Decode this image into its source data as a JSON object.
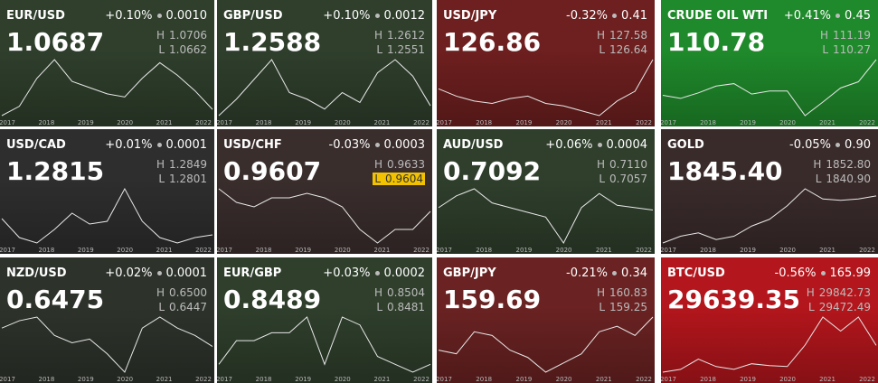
{
  "high_label": "H",
  "low_label": "L",
  "years": [
    "2017",
    "2018",
    "2019",
    "2020",
    "2021",
    "2022"
  ],
  "tiles": [
    {
      "symbol": "EUR/USD",
      "change_pct": "+0.10%",
      "change": "0.0010",
      "price": "1.0687",
      "high": "1.0706",
      "low": "1.0662",
      "color": "#2f3f2c",
      "history": [
        1.05,
        1.08,
        1.17,
        1.23,
        1.16,
        1.14,
        1.12,
        1.11,
        1.17,
        1.22,
        1.18,
        1.13,
        1.07
      ]
    },
    {
      "symbol": "GBP/USD",
      "change_pct": "+0.10%",
      "change": "0.0012",
      "price": "1.2588",
      "high": "1.2612",
      "low": "1.2551",
      "color": "#2f3f2c",
      "history": [
        1.23,
        1.28,
        1.34,
        1.4,
        1.3,
        1.28,
        1.25,
        1.3,
        1.27,
        1.36,
        1.4,
        1.35,
        1.26
      ]
    },
    {
      "symbol": "USD/JPY",
      "change_pct": "-0.32%",
      "change": "0.41",
      "price": "126.86",
      "high": "127.58",
      "low": "126.64",
      "color": "#6e1f1f",
      "history": [
        115,
        112,
        110,
        109,
        111,
        112,
        109,
        108,
        106,
        104,
        110,
        114,
        127
      ]
    },
    {
      "symbol": "CRUDE OIL WTI",
      "change_pct": "+0.41%",
      "change": "0.45",
      "price": "110.78",
      "high": "111.19",
      "low": "110.27",
      "color": "#1f8a2b",
      "history": [
        53,
        48,
        57,
        68,
        72,
        55,
        60,
        60,
        20,
        42,
        65,
        75,
        111
      ]
    },
    {
      "symbol": "USD/CAD",
      "change_pct": "+0.01%",
      "change": "0.0001",
      "price": "1.2815",
      "high": "1.2849",
      "low": "1.2801",
      "color": "#2e2e2e",
      "history": [
        1.34,
        1.27,
        1.25,
        1.3,
        1.36,
        1.32,
        1.33,
        1.45,
        1.33,
        1.27,
        1.25,
        1.27,
        1.28
      ]
    },
    {
      "symbol": "USD/CHF",
      "change_pct": "-0.03%",
      "change": "0.0003",
      "price": "0.9607",
      "high": "0.9633",
      "low": "0.9604",
      "low_highlight": true,
      "color": "#3a2e2d",
      "history": [
        1.01,
        0.98,
        0.97,
        0.99,
        0.99,
        1.0,
        0.99,
        0.97,
        0.92,
        0.89,
        0.92,
        0.92,
        0.96
      ]
    },
    {
      "symbol": "AUD/USD",
      "change_pct": "+0.06%",
      "change": "0.0004",
      "price": "0.7092",
      "high": "0.7110",
      "low": "0.7057",
      "color": "#2f3f2c",
      "history": [
        0.72,
        0.77,
        0.8,
        0.74,
        0.72,
        0.7,
        0.68,
        0.57,
        0.72,
        0.78,
        0.73,
        0.72,
        0.71
      ]
    },
    {
      "symbol": "GOLD",
      "change_pct": "-0.05%",
      "change": "0.90",
      "price": "1845.40",
      "high": "1852.80",
      "low": "1840.90",
      "color": "#3a2b2b",
      "history": [
        1150,
        1250,
        1300,
        1200,
        1250,
        1400,
        1500,
        1700,
        1950,
        1800,
        1780,
        1800,
        1845
      ]
    },
    {
      "symbol": "NZD/USD",
      "change_pct": "+0.02%",
      "change": "0.0001",
      "price": "0.6475",
      "high": "0.6500",
      "low": "0.6447",
      "color": "#2d332b",
      "history": [
        0.7,
        0.72,
        0.73,
        0.68,
        0.66,
        0.67,
        0.63,
        0.58,
        0.7,
        0.73,
        0.7,
        0.68,
        0.65
      ]
    },
    {
      "symbol": "EUR/GBP",
      "change_pct": "+0.03%",
      "change": "0.0002",
      "price": "0.8489",
      "high": "0.8504",
      "low": "0.8481",
      "color": "#2f3f2c",
      "history": [
        0.85,
        0.88,
        0.88,
        0.89,
        0.89,
        0.91,
        0.85,
        0.91,
        0.9,
        0.86,
        0.85,
        0.84,
        0.85
      ]
    },
    {
      "symbol": "GBP/JPY",
      "change_pct": "-0.21%",
      "change": "0.34",
      "price": "159.69",
      "high": "160.83",
      "low": "159.25",
      "color": "#6a2222",
      "history": [
        142,
        140,
        152,
        150,
        142,
        138,
        130,
        135,
        140,
        152,
        155,
        150,
        160
      ]
    },
    {
      "symbol": "BTC/USD",
      "change_pct": "-0.56%",
      "change": "165.99",
      "price": "29639.35",
      "high": "29842.73",
      "low": "29472.49",
      "color": "#b3161c",
      "history": [
        1000,
        4000,
        15000,
        7000,
        4000,
        10000,
        8000,
        7000,
        30000,
        60000,
        45000,
        60000,
        29639
      ]
    }
  ]
}
